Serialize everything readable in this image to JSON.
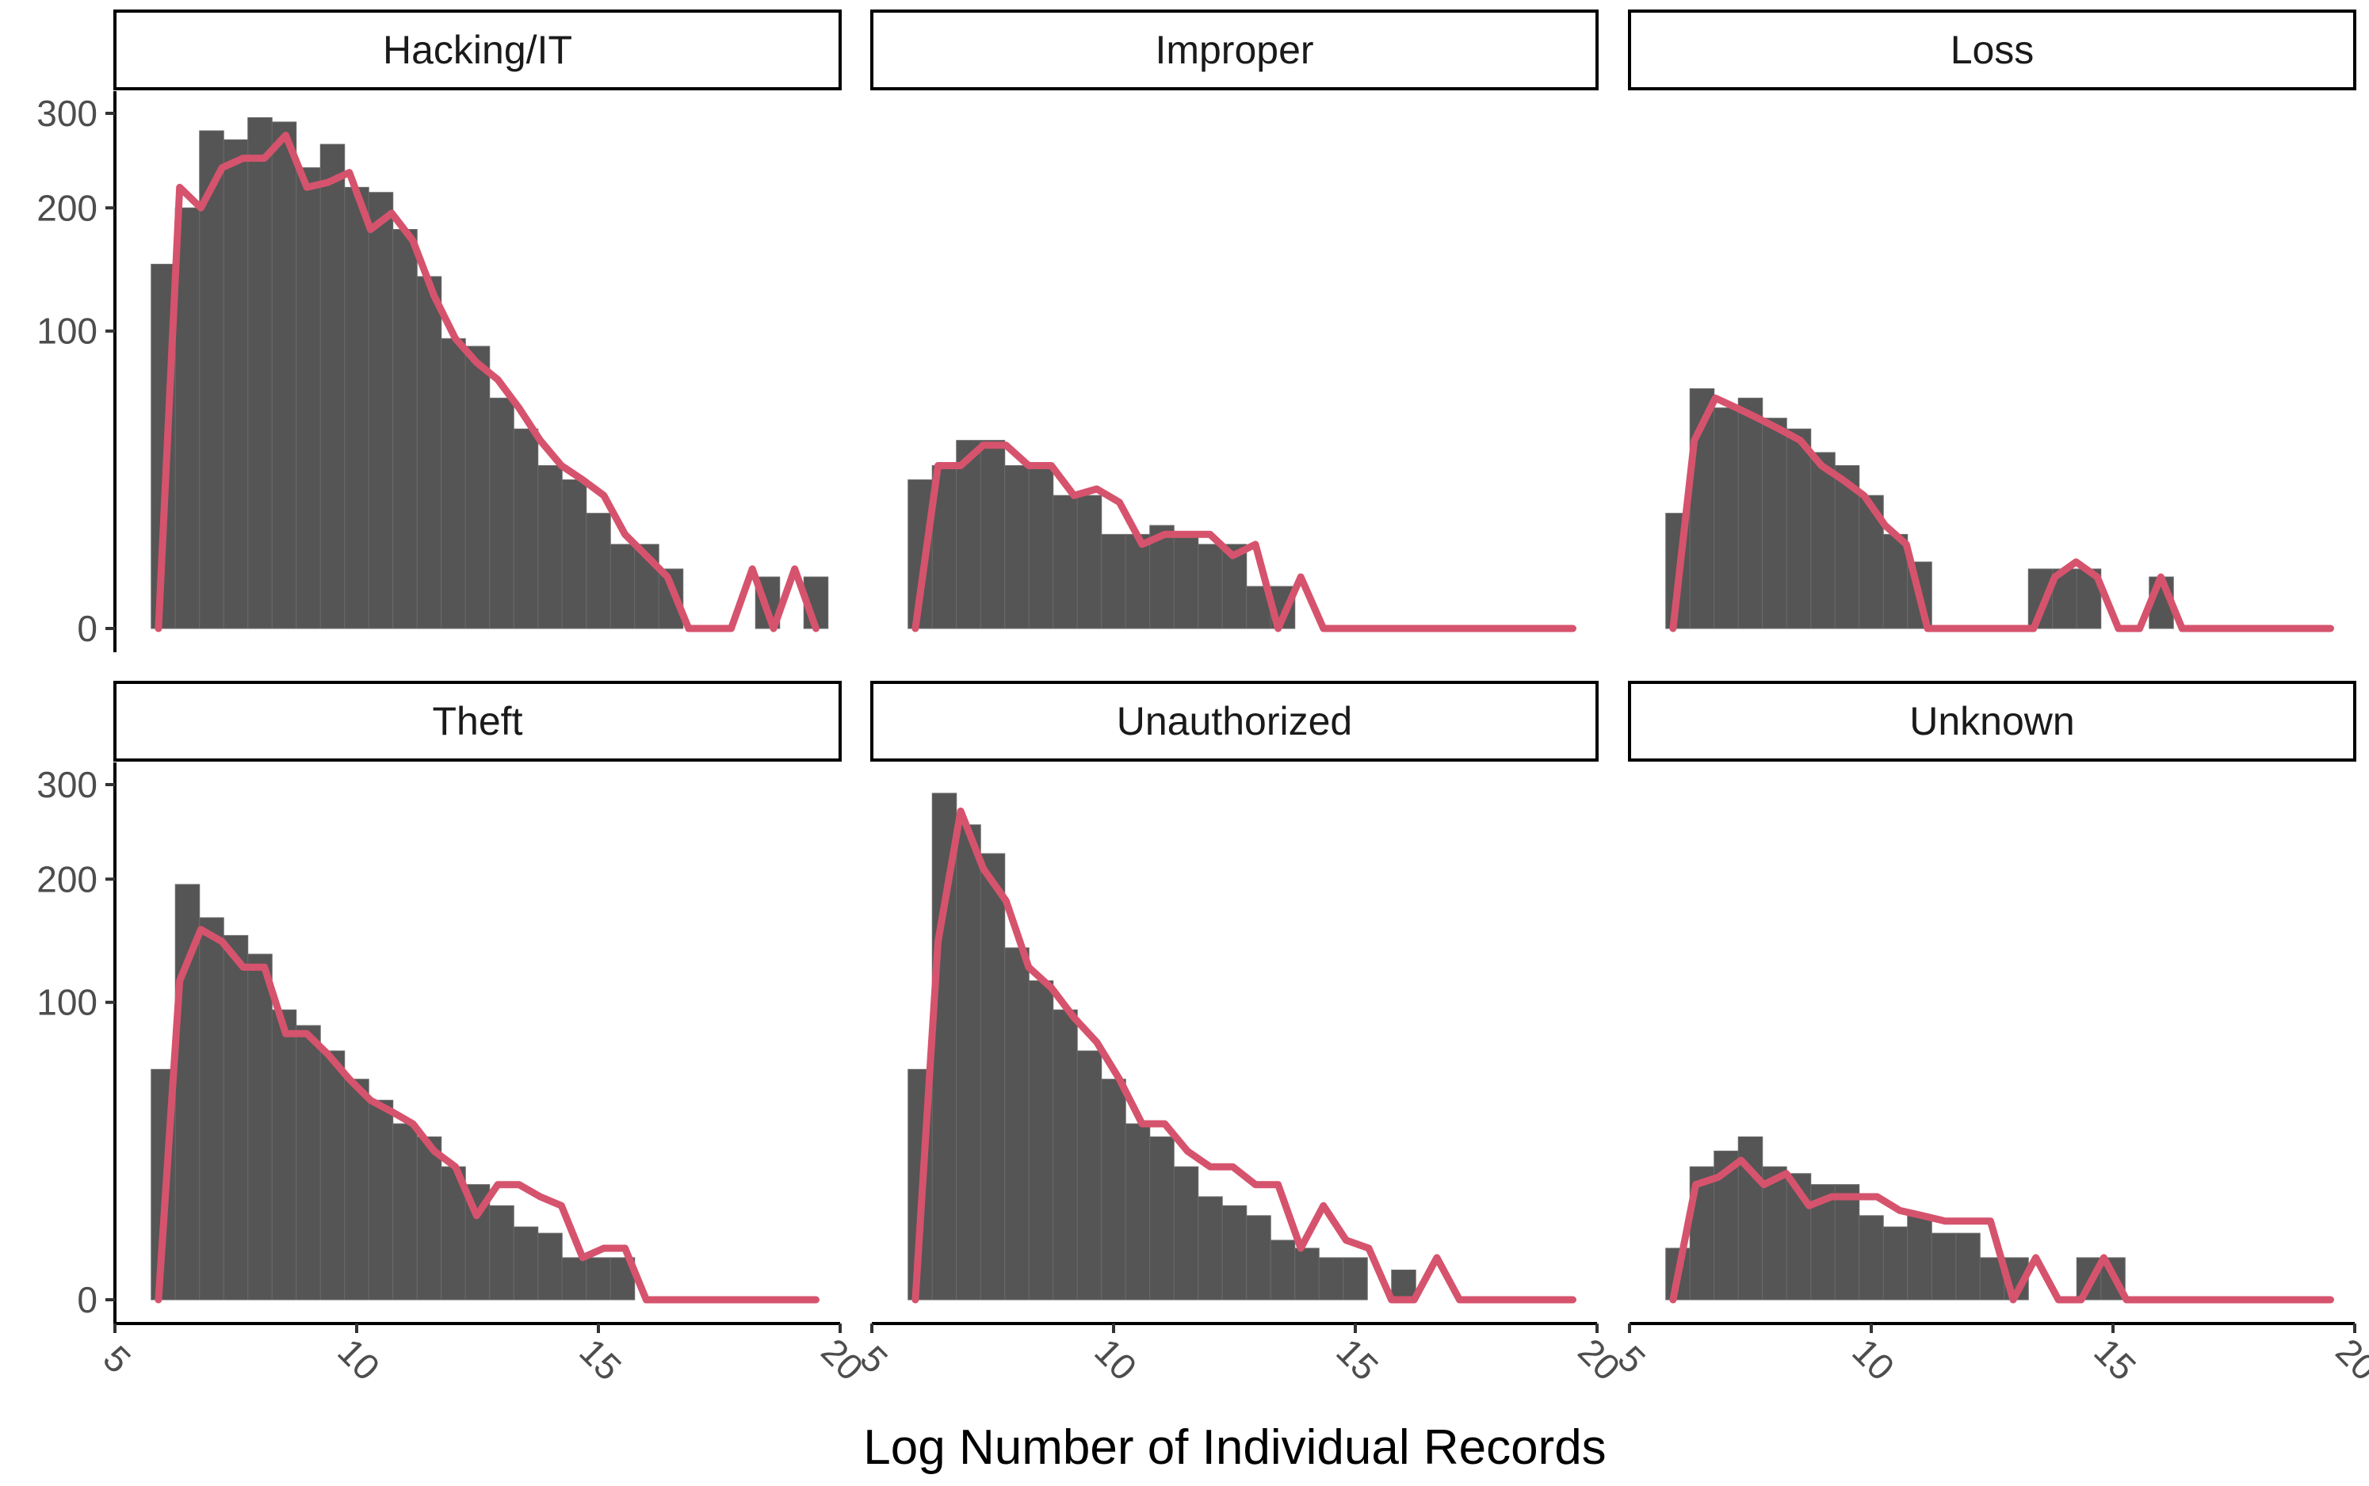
{
  "chart_data": {
    "type": "histogram",
    "facet_layout": "3 columns x 2 rows, shared x axis",
    "xlabel": "Log Number of Individual Records",
    "ylabel": "",
    "x_ticks": [
      "5",
      "10",
      "15",
      "20"
    ],
    "y_ticks": [
      "0",
      "100",
      "200",
      "300"
    ],
    "y_scale": "sqrt",
    "xlim": [
      5,
      20
    ],
    "ylim": [
      0,
      325
    ],
    "bin_width": 0.5,
    "bin_start": 5.75,
    "bar_color": "#555555",
    "line_color": "#d6536d",
    "series": [
      {
        "name": "Hacking/IT",
        "bars": [
          150,
          200,
          280,
          270,
          295,
          290,
          240,
          265,
          220,
          215,
          180,
          140,
          95,
          90,
          60,
          45,
          30,
          25,
          15,
          8,
          8,
          4,
          0,
          0,
          0,
          3,
          0,
          3
        ],
        "line": [
          0,
          220,
          200,
          240,
          250,
          250,
          275,
          220,
          225,
          235,
          180,
          195,
          170,
          125,
          95,
          80,
          70,
          55,
          40,
          30,
          25,
          20,
          10,
          6,
          3,
          0,
          0,
          0,
          4,
          0,
          4,
          0
        ]
      },
      {
        "name": "Improper",
        "bars": [
          25,
          30,
          40,
          40,
          30,
          30,
          20,
          20,
          10,
          10,
          12,
          10,
          8,
          8,
          2,
          2,
          0,
          0,
          0,
          0,
          0,
          0,
          0,
          0,
          0,
          0,
          0,
          0
        ],
        "line": [
          0,
          30,
          30,
          38,
          38,
          30,
          30,
          20,
          22,
          18,
          8,
          10,
          10,
          10,
          6,
          8,
          0,
          3,
          0,
          0,
          0,
          0,
          0,
          0,
          0,
          0,
          0,
          0,
          0,
          0
        ]
      },
      {
        "name": "Loss",
        "bars": [
          15,
          65,
          55,
          60,
          50,
          45,
          35,
          30,
          20,
          10,
          5,
          0,
          0,
          0,
          0,
          4,
          4,
          4,
          0,
          0,
          3,
          0,
          0,
          0,
          0,
          0,
          0,
          0
        ],
        "line": [
          0,
          40,
          60,
          55,
          50,
          45,
          40,
          30,
          25,
          20,
          12,
          8,
          0,
          0,
          0,
          0,
          0,
          0,
          3,
          5,
          3,
          0,
          0,
          3,
          0,
          0,
          0,
          0,
          0,
          0,
          0,
          0
        ]
      },
      {
        "name": "Theft",
        "bars": [
          60,
          195,
          165,
          150,
          135,
          95,
          85,
          70,
          55,
          45,
          35,
          30,
          20,
          15,
          10,
          6,
          5,
          2,
          2,
          2,
          0,
          0,
          0,
          0,
          0,
          0,
          0,
          0
        ],
        "line": [
          0,
          115,
          155,
          145,
          125,
          125,
          80,
          80,
          68,
          55,
          45,
          40,
          35,
          25,
          20,
          8,
          15,
          15,
          12,
          10,
          2,
          3,
          3,
          0,
          0,
          0,
          0,
          0,
          0,
          0,
          0,
          0
        ]
      },
      {
        "name": "Unauthorized",
        "bars": [
          60,
          290,
          255,
          225,
          140,
          115,
          95,
          70,
          55,
          35,
          30,
          20,
          12,
          10,
          8,
          4,
          3,
          2,
          2,
          0,
          1,
          0,
          0,
          0,
          0,
          0,
          0,
          0
        ],
        "line": [
          0,
          145,
          270,
          210,
          180,
          125,
          110,
          90,
          75,
          55,
          35,
          35,
          25,
          20,
          20,
          15,
          15,
          3,
          10,
          4,
          3,
          0,
          0,
          2,
          0,
          0,
          0,
          0,
          0,
          0
        ]
      },
      {
        "name": "Unknown",
        "bars": [
          3,
          20,
          25,
          30,
          20,
          18,
          15,
          15,
          8,
          6,
          8,
          5,
          5,
          2,
          2,
          0,
          0,
          2,
          2,
          0,
          0,
          0,
          0,
          0,
          0,
          0,
          0,
          0
        ],
        "line": [
          0,
          15,
          17,
          22,
          15,
          18,
          10,
          12,
          12,
          12,
          9,
          8,
          7,
          7,
          7,
          0,
          2,
          0,
          0,
          2,
          0,
          0,
          0,
          0,
          0,
          0,
          0,
          0,
          0,
          0
        ]
      }
    ]
  }
}
